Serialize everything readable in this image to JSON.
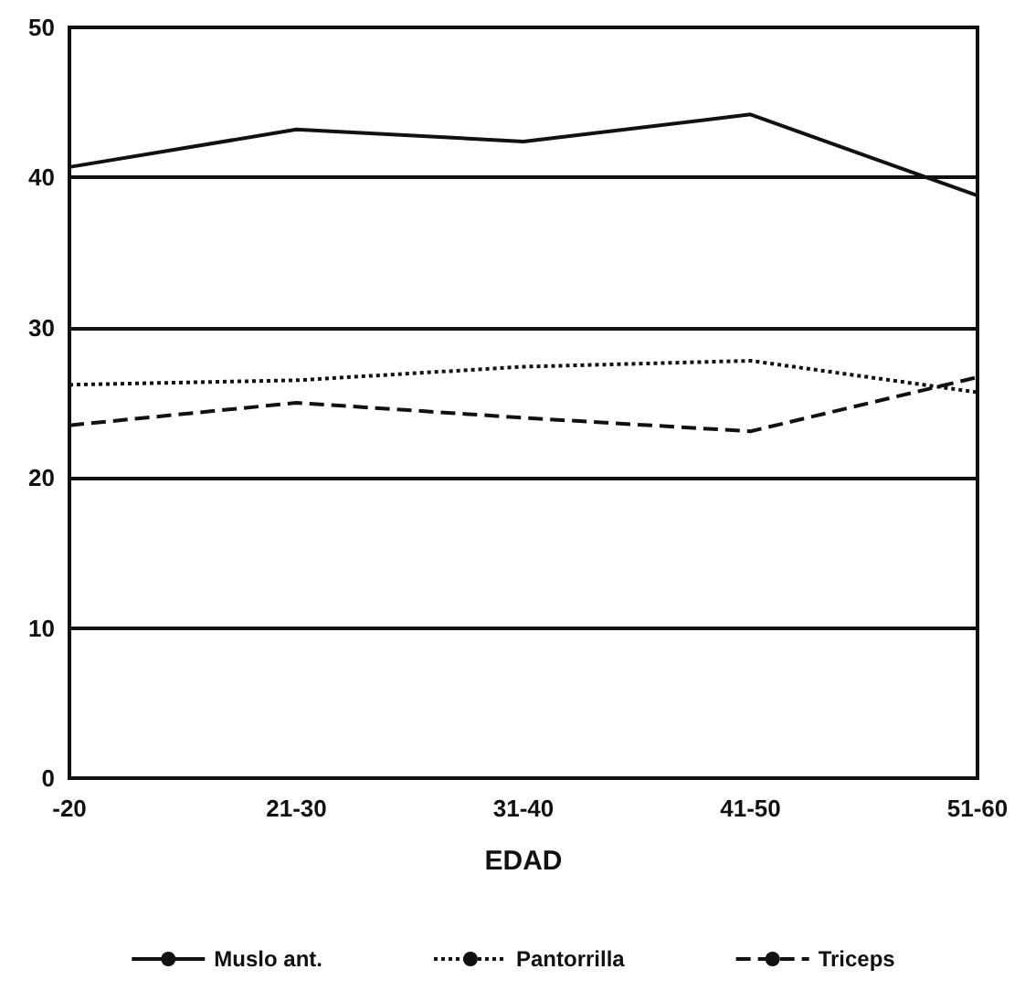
{
  "chart_data": {
    "type": "line",
    "xlabel": "EDAD",
    "categories": [
      "-20",
      "21-30",
      "31-40",
      "41-50",
      "51-60"
    ],
    "series": [
      {
        "name": "Muslo ant.",
        "color": "#111111",
        "line_style": "solid",
        "values": [
          40.7,
          43.2,
          42.4,
          44.2,
          38.8
        ]
      },
      {
        "name": "Pantorrilla",
        "color": "#111111",
        "line_style": "dotted",
        "values": [
          26.2,
          26.5,
          27.4,
          27.8,
          25.7
        ]
      },
      {
        "name": "Triceps",
        "color": "#111111",
        "line_style": "dashed",
        "values": [
          23.5,
          25.0,
          24.0,
          23.1,
          26.7
        ]
      }
    ],
    "ylim": [
      0,
      50
    ],
    "yticks": [
      0,
      10,
      20,
      30,
      40,
      50
    ],
    "grid": "y",
    "legend": "bottom",
    "marker": "none"
  }
}
